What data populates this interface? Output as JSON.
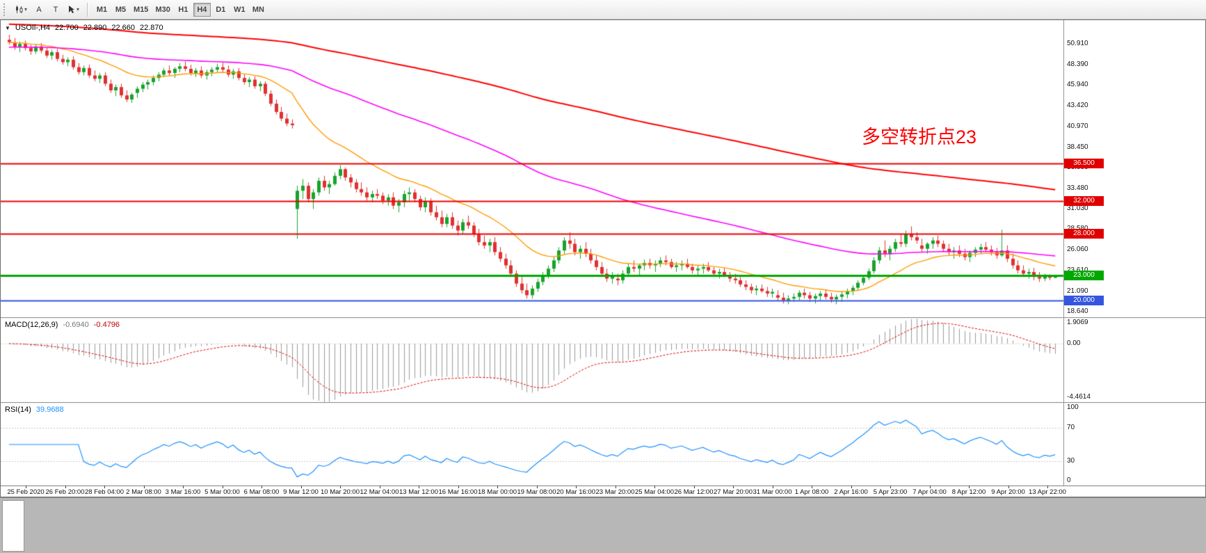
{
  "toolbar": {
    "cursor_label": "A",
    "text_label": "T",
    "timeframes": [
      "M1",
      "M5",
      "M15",
      "M30",
      "H1",
      "H4",
      "D1",
      "W1",
      "MN"
    ],
    "active_timeframe": "H4"
  },
  "chart": {
    "symbol_header": {
      "symbol": "USOIl-,H4",
      "open": "22.700",
      "high": "22.890",
      "low": "22.660",
      "close": "22.870"
    },
    "annotation": {
      "text": "多空转折点23",
      "color": "#FF0000"
    },
    "price_axis_labels": [
      "50.910",
      "48.390",
      "45.940",
      "43.420",
      "40.970",
      "38.450",
      "36.000",
      "33.480",
      "31.030",
      "28.580",
      "26.060",
      "23.610",
      "21.090",
      "18.640"
    ],
    "line_badges": [
      {
        "value": "36.500",
        "price": 36.5,
        "color": "#e00000"
      },
      {
        "value": "32.000",
        "price": 32.0,
        "color": "#e00000"
      },
      {
        "value": "28.000",
        "price": 28.0,
        "color": "#e00000"
      },
      {
        "value": "23.000",
        "price": 23.0,
        "color": "#00a800"
      },
      {
        "value": "20.000",
        "price": 20.0,
        "color": "#3355e0"
      }
    ]
  },
  "macd_panel": {
    "label": "MACD(12,26,9)",
    "value_main": "-0.6940",
    "value_signal": "-0.4796",
    "axis_labels": [
      "1.9069",
      "0.00",
      "-4.4614"
    ]
  },
  "rsi_panel": {
    "label": "RSI(14)",
    "value": "39.9688",
    "axis_labels": [
      "100",
      "70",
      "30",
      "0"
    ]
  },
  "chart_data": {
    "type": "candlestick",
    "symbol": "USOIL",
    "timeframe": "H4",
    "price_range": [
      17.95,
      53.6
    ],
    "bull_color": "#18a32c",
    "bear_color": "#e03131",
    "time_labels": [
      "25 Feb 2020",
      "26 Feb 20:00",
      "28 Feb 04:00",
      "2 Mar 08:00",
      "3 Mar 16:00",
      "5 Mar 00:00",
      "6 Mar 08:00",
      "9 Mar 12:00",
      "10 Mar 20:00",
      "12 Mar 04:00",
      "13 Mar 12:00",
      "16 Mar 16:00",
      "18 Mar 00:00",
      "19 Mar 08:00",
      "20 Mar 16:00",
      "23 Mar 20:00",
      "25 Mar 04:00",
      "26 Mar 12:00",
      "27 Mar 20:00",
      "31 Mar 00:00",
      "1 Apr 08:00",
      "2 Apr 16:00",
      "5 Apr 23:00",
      "7 Apr 04:00",
      "8 Apr 12:00",
      "9 Apr 20:00",
      "13 Apr 22:00"
    ],
    "horizontal_lines": [
      {
        "price": 36.5,
        "color": "#ee0000",
        "width": 2
      },
      {
        "price": 32.0,
        "color": "#ee0000",
        "width": 2
      },
      {
        "price": 28.0,
        "color": "#ee0000",
        "width": 2
      },
      {
        "price": 23.0,
        "color": "#00a800",
        "width": 3
      },
      {
        "price": 20.0,
        "color": "#3355e0",
        "width": 2
      }
    ],
    "moving_averages": [
      {
        "period": 21,
        "color": "#ff9b00",
        "width": 1.4,
        "seed": null
      },
      {
        "period": 89,
        "color": "#ff00ff",
        "width": 1.6,
        "seed": 50.5
      },
      {
        "period": 250,
        "color": "#ff0000",
        "width": 2.0,
        "seed": 53.3
      }
    ],
    "macd": {
      "fast": 12,
      "slow": 26,
      "signal": 9,
      "axis_range": [
        -4.4614,
        1.9069
      ]
    },
    "rsi": {
      "period": 14,
      "levels": [
        70,
        30
      ],
      "range": [
        0,
        100
      ]
    },
    "candles": [
      [
        51.4,
        52.0,
        50.8,
        51.1
      ],
      [
        51.1,
        51.6,
        50.2,
        50.5
      ],
      [
        50.5,
        51.2,
        49.9,
        50.9
      ],
      [
        50.9,
        51.3,
        50.1,
        50.4
      ],
      [
        50.4,
        50.8,
        49.6,
        50.0
      ],
      [
        50.0,
        50.9,
        49.7,
        50.6
      ],
      [
        50.6,
        51.0,
        49.8,
        50.1
      ],
      [
        50.1,
        50.5,
        49.2,
        49.5
      ],
      [
        49.5,
        50.2,
        49.0,
        49.9
      ],
      [
        49.9,
        50.3,
        48.8,
        49.1
      ],
      [
        49.1,
        49.6,
        48.4,
        48.7
      ],
      [
        48.7,
        49.3,
        48.2,
        49.0
      ],
      [
        49.0,
        49.4,
        47.8,
        48.1
      ],
      [
        48.1,
        48.6,
        47.2,
        47.5
      ],
      [
        47.5,
        48.3,
        47.1,
        48.0
      ],
      [
        48.0,
        48.4,
        46.8,
        47.1
      ],
      [
        47.1,
        47.7,
        46.4,
        46.7
      ],
      [
        46.7,
        47.4,
        46.2,
        47.1
      ],
      [
        47.1,
        47.5,
        45.8,
        46.1
      ],
      [
        46.1,
        46.6,
        45.0,
        45.3
      ],
      [
        45.3,
        46.0,
        44.6,
        45.7
      ],
      [
        45.7,
        46.1,
        44.4,
        44.7
      ],
      [
        44.7,
        45.3,
        43.9,
        44.2
      ],
      [
        44.2,
        45.0,
        43.8,
        44.8
      ],
      [
        45.0,
        45.8,
        44.4,
        45.5
      ],
      [
        45.5,
        46.3,
        45.1,
        46.0
      ],
      [
        46.0,
        46.6,
        45.4,
        46.3
      ],
      [
        46.3,
        47.1,
        45.9,
        46.8
      ],
      [
        46.8,
        47.5,
        46.4,
        47.2
      ],
      [
        47.2,
        48.0,
        46.9,
        47.7
      ],
      [
        47.7,
        48.3,
        47.0,
        47.4
      ],
      [
        47.4,
        48.1,
        46.8,
        47.9
      ],
      [
        47.9,
        48.6,
        47.5,
        48.2
      ],
      [
        48.2,
        48.8,
        47.6,
        47.9
      ],
      [
        47.9,
        48.4,
        47.1,
        47.4
      ],
      [
        47.4,
        48.0,
        46.9,
        47.7
      ],
      [
        47.7,
        48.2,
        46.8,
        47.1
      ],
      [
        47.1,
        47.8,
        46.6,
        47.5
      ],
      [
        47.5,
        48.1,
        47.0,
        47.8
      ],
      [
        47.8,
        48.5,
        47.4,
        48.1
      ],
      [
        48.1,
        48.7,
        47.5,
        47.8
      ],
      [
        47.8,
        48.3,
        46.9,
        47.2
      ],
      [
        47.2,
        47.9,
        46.7,
        47.6
      ],
      [
        47.6,
        48.0,
        46.5,
        46.8
      ],
      [
        46.8,
        47.3,
        46.0,
        46.3
      ],
      [
        46.3,
        46.9,
        45.7,
        46.6
      ],
      [
        46.6,
        47.0,
        45.5,
        45.8
      ],
      [
        45.8,
        46.4,
        45.2,
        46.1
      ],
      [
        46.1,
        46.4,
        44.6,
        44.9
      ],
      [
        44.9,
        45.3,
        43.4,
        43.7
      ],
      [
        43.7,
        44.2,
        42.4,
        42.7
      ],
      [
        42.7,
        43.3,
        41.6,
        41.9
      ],
      [
        41.9,
        42.5,
        41.0,
        41.3
      ],
      [
        41.3,
        41.8,
        40.7,
        41.1
      ],
      [
        31.0,
        33.8,
        27.4,
        33.2
      ],
      [
        33.2,
        34.6,
        32.2,
        33.8
      ],
      [
        33.8,
        34.2,
        31.8,
        32.2
      ],
      [
        32.2,
        33.4,
        31.0,
        33.0
      ],
      [
        33.0,
        34.8,
        32.6,
        34.4
      ],
      [
        34.4,
        35.0,
        33.2,
        33.6
      ],
      [
        33.6,
        34.4,
        32.8,
        34.0
      ],
      [
        34.0,
        35.4,
        33.8,
        35.0
      ],
      [
        35.0,
        36.3,
        34.6,
        35.8
      ],
      [
        35.8,
        36.0,
        34.4,
        34.8
      ],
      [
        34.8,
        35.2,
        33.6,
        34.2
      ],
      [
        34.2,
        34.6,
        33.0,
        33.4
      ],
      [
        33.4,
        34.2,
        32.6,
        33.0
      ],
      [
        33.0,
        33.6,
        32.0,
        32.4
      ],
      [
        32.4,
        33.2,
        31.8,
        32.8
      ],
      [
        32.8,
        33.4,
        32.2,
        32.6
      ],
      [
        32.6,
        33.0,
        31.6,
        32.0
      ],
      [
        32.0,
        32.8,
        31.4,
        32.4
      ],
      [
        32.4,
        33.0,
        31.0,
        31.4
      ],
      [
        31.4,
        32.2,
        30.6,
        31.8
      ],
      [
        31.8,
        33.2,
        31.2,
        32.8
      ],
      [
        32.8,
        33.6,
        32.0,
        33.0
      ],
      [
        33.0,
        33.4,
        31.8,
        32.2
      ],
      [
        32.2,
        32.6,
        30.8,
        31.2
      ],
      [
        31.2,
        32.4,
        30.6,
        31.9
      ],
      [
        31.9,
        32.3,
        30.2,
        30.6
      ],
      [
        30.6,
        31.4,
        29.6,
        30.0
      ],
      [
        30.0,
        30.8,
        28.8,
        29.2
      ],
      [
        29.2,
        30.4,
        28.8,
        30.0
      ],
      [
        30.0,
        30.6,
        28.6,
        29.0
      ],
      [
        29.0,
        29.6,
        27.8,
        28.4
      ],
      [
        28.4,
        29.8,
        28.0,
        29.4
      ],
      [
        29.4,
        30.2,
        28.6,
        29.0
      ],
      [
        29.0,
        29.4,
        27.6,
        28.0
      ],
      [
        28.0,
        28.6,
        26.6,
        27.0
      ],
      [
        27.0,
        27.8,
        26.2,
        26.6
      ],
      [
        26.6,
        27.4,
        25.8,
        27.0
      ],
      [
        27.0,
        27.6,
        25.4,
        25.8
      ],
      [
        25.8,
        26.4,
        24.6,
        25.0
      ],
      [
        25.0,
        25.6,
        23.8,
        24.2
      ],
      [
        24.2,
        24.8,
        22.8,
        23.2
      ],
      [
        23.2,
        23.6,
        21.6,
        22.0
      ],
      [
        22.0,
        22.8,
        20.8,
        21.2
      ],
      [
        21.2,
        22.0,
        20.2,
        20.6
      ],
      [
        20.6,
        21.8,
        20.2,
        21.4
      ],
      [
        21.4,
        22.6,
        21.0,
        22.2
      ],
      [
        22.2,
        23.4,
        21.8,
        23.0
      ],
      [
        23.0,
        24.2,
        22.6,
        23.8
      ],
      [
        23.8,
        25.2,
        23.4,
        24.8
      ],
      [
        24.8,
        26.4,
        24.4,
        26.0
      ],
      [
        26.0,
        27.6,
        25.6,
        27.2
      ],
      [
        27.2,
        28.2,
        26.2,
        26.8
      ],
      [
        26.8,
        27.4,
        25.4,
        25.8
      ],
      [
        25.8,
        26.6,
        25.0,
        26.2
      ],
      [
        26.2,
        27.0,
        25.2,
        25.6
      ],
      [
        25.6,
        26.2,
        24.4,
        24.8
      ],
      [
        24.8,
        25.4,
        23.6,
        24.0
      ],
      [
        24.0,
        24.6,
        22.8,
        23.2
      ],
      [
        23.2,
        23.8,
        22.2,
        22.6
      ],
      [
        22.6,
        23.4,
        22.0,
        23.0
      ],
      [
        22.6,
        23.2,
        21.8,
        22.4
      ],
      [
        22.4,
        23.6,
        22.0,
        23.2
      ],
      [
        23.2,
        24.4,
        22.8,
        24.0
      ],
      [
        24.0,
        24.8,
        23.4,
        23.8
      ],
      [
        23.8,
        24.4,
        23.0,
        24.2
      ],
      [
        24.2,
        24.9,
        23.6,
        24.5
      ],
      [
        24.5,
        25.0,
        23.8,
        24.2
      ],
      [
        24.2,
        24.8,
        23.4,
        24.4
      ],
      [
        24.4,
        25.2,
        24.0,
        24.8
      ],
      [
        24.8,
        25.4,
        24.2,
        24.6
      ],
      [
        24.6,
        25.0,
        23.8,
        24.0
      ],
      [
        24.0,
        24.6,
        23.4,
        24.2
      ],
      [
        24.2,
        24.8,
        23.6,
        24.4
      ],
      [
        24.4,
        25.0,
        23.8,
        24.0
      ],
      [
        24.0,
        24.4,
        23.2,
        23.6
      ],
      [
        23.6,
        24.2,
        23.0,
        23.8
      ],
      [
        23.8,
        24.4,
        23.2,
        24.0
      ],
      [
        24.0,
        24.6,
        23.4,
        23.6
      ],
      [
        23.6,
        24.0,
        22.8,
        23.2
      ],
      [
        23.2,
        23.8,
        22.6,
        23.4
      ],
      [
        23.4,
        23.9,
        22.8,
        23.0
      ],
      [
        23.0,
        23.4,
        22.2,
        22.6
      ],
      [
        22.6,
        23.2,
        22.0,
        22.4
      ],
      [
        22.4,
        22.8,
        21.6,
        21.9
      ],
      [
        21.9,
        22.4,
        21.2,
        21.6
      ],
      [
        21.6,
        22.0,
        20.8,
        21.2
      ],
      [
        21.2,
        21.8,
        20.6,
        21.4
      ],
      [
        21.4,
        21.9,
        20.9,
        21.1
      ],
      [
        21.1,
        21.6,
        20.4,
        20.8
      ],
      [
        20.8,
        21.4,
        20.3,
        21.0
      ],
      [
        20.6,
        21.2,
        19.9,
        20.3
      ],
      [
        20.3,
        20.9,
        19.6,
        20.0
      ],
      [
        20.0,
        20.6,
        19.5,
        20.2
      ],
      [
        20.2,
        20.8,
        19.8,
        20.4
      ],
      [
        20.4,
        21.2,
        20.0,
        20.9
      ],
      [
        20.9,
        21.4,
        20.2,
        20.6
      ],
      [
        20.6,
        21.0,
        19.8,
        20.2
      ],
      [
        20.2,
        20.8,
        19.6,
        20.5
      ],
      [
        20.5,
        21.1,
        20.0,
        20.8
      ],
      [
        20.8,
        21.3,
        20.1,
        20.4
      ],
      [
        20.4,
        20.9,
        19.7,
        20.1
      ],
      [
        20.1,
        20.7,
        19.5,
        20.4
      ],
      [
        20.4,
        21.0,
        19.8,
        20.7
      ],
      [
        20.7,
        21.4,
        20.2,
        21.1
      ],
      [
        21.1,
        21.8,
        20.6,
        21.5
      ],
      [
        21.5,
        22.4,
        21.2,
        22.1
      ],
      [
        22.1,
        23.0,
        21.8,
        22.7
      ],
      [
        22.7,
        23.8,
        22.4,
        23.5
      ],
      [
        23.5,
        25.2,
        23.2,
        24.8
      ],
      [
        24.8,
        26.4,
        24.4,
        26.0
      ],
      [
        26.0,
        27.2,
        25.2,
        25.6
      ],
      [
        25.6,
        26.6,
        24.8,
        26.2
      ],
      [
        26.2,
        27.4,
        25.8,
        27.0
      ],
      [
        27.0,
        28.0,
        26.4,
        26.8
      ],
      [
        26.8,
        28.4,
        26.4,
        28.0
      ],
      [
        28.0,
        28.9,
        27.2,
        27.6
      ],
      [
        27.6,
        28.2,
        26.8,
        27.2
      ],
      [
        26.6,
        27.4,
        25.8,
        26.2
      ],
      [
        26.2,
        27.0,
        25.6,
        26.8
      ],
      [
        26.8,
        27.6,
        26.2,
        27.2
      ],
      [
        27.2,
        27.8,
        26.4,
        26.8
      ],
      [
        26.8,
        27.2,
        25.8,
        26.2
      ],
      [
        26.2,
        26.8,
        25.4,
        25.8
      ],
      [
        25.8,
        26.4,
        25.0,
        26.0
      ],
      [
        26.0,
        26.6,
        25.2,
        25.6
      ],
      [
        25.6,
        26.2,
        24.8,
        25.2
      ],
      [
        25.2,
        26.0,
        24.6,
        25.7
      ],
      [
        25.7,
        26.4,
        25.2,
        26.1
      ],
      [
        26.1,
        26.8,
        25.6,
        26.4
      ],
      [
        26.4,
        27.0,
        25.8,
        26.1
      ],
      [
        26.1,
        26.6,
        25.4,
        25.8
      ],
      [
        25.8,
        26.3,
        25.0,
        25.4
      ],
      [
        25.4,
        28.5,
        25.2,
        26.0
      ],
      [
        26.0,
        26.6,
        24.6,
        25.0
      ],
      [
        25.0,
        25.6,
        23.8,
        24.2
      ],
      [
        24.2,
        24.8,
        23.2,
        23.6
      ],
      [
        23.6,
        24.2,
        22.8,
        23.2
      ],
      [
        23.2,
        23.8,
        22.6,
        23.4
      ],
      [
        23.4,
        23.9,
        22.4,
        22.8
      ],
      [
        22.8,
        23.4,
        22.2,
        22.6
      ],
      [
        22.6,
        23.2,
        22.3,
        22.9
      ],
      [
        22.9,
        23.1,
        22.4,
        22.7
      ],
      [
        22.7,
        22.89,
        22.66,
        22.87
      ]
    ]
  }
}
